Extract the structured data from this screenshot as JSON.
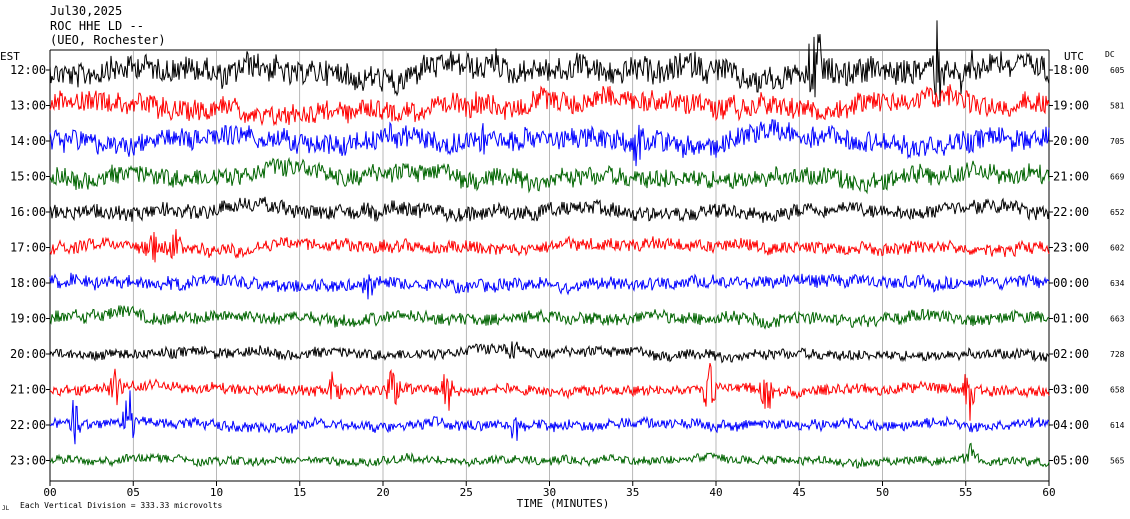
{
  "header": {
    "date": "Jul30,2025",
    "station": "ROC HHE LD --",
    "network": "(UEO, Rochester)"
  },
  "chart_data": {
    "type": "line",
    "left_axis_label": "EST",
    "right_axis_label": "UTC",
    "dc_label": "DC",
    "xlabel": "TIME (MINUTES)",
    "x_ticks": [
      "00",
      "05",
      "10",
      "15",
      "20",
      "25",
      "30",
      "35",
      "40",
      "45",
      "50",
      "55",
      "60"
    ],
    "xlim": [
      0,
      60
    ],
    "footnote": "Each Vertical Division =  333.33 microvolts",
    "footnote_mark": "JL",
    "rows": [
      {
        "est": "12:00",
        "utc": "18:00",
        "dc": "605",
        "color": "#000000",
        "amp": 12
      },
      {
        "est": "13:00",
        "utc": "19:00",
        "dc": "581",
        "color": "#ff0000",
        "amp": 10
      },
      {
        "est": "14:00",
        "utc": "20:00",
        "dc": "705",
        "color": "#0000ff",
        "amp": 10
      },
      {
        "est": "15:00",
        "utc": "21:00",
        "dc": "669",
        "color": "#006400",
        "amp": 9
      },
      {
        "est": "16:00",
        "utc": "22:00",
        "dc": "652",
        "color": "#000000",
        "amp": 7
      },
      {
        "est": "17:00",
        "utc": "23:00",
        "dc": "602",
        "color": "#ff0000",
        "amp": 6
      },
      {
        "est": "18:00",
        "utc": "00:00",
        "dc": "634",
        "color": "#0000ff",
        "amp": 6
      },
      {
        "est": "19:00",
        "utc": "01:00",
        "dc": "663",
        "color": "#006400",
        "amp": 6
      },
      {
        "est": "20:00",
        "utc": "02:00",
        "dc": "728",
        "color": "#000000",
        "amp": 5
      },
      {
        "est": "21:00",
        "utc": "03:00",
        "dc": "658",
        "color": "#ff0000",
        "amp": 5
      },
      {
        "est": "22:00",
        "utc": "04:00",
        "dc": "614",
        "color": "#0000ff",
        "amp": 5
      },
      {
        "est": "23:00",
        "utc": "05:00",
        "dc": "565",
        "color": "#006400",
        "amp": 4
      }
    ],
    "events": [
      {
        "row": 0,
        "t": 46.0,
        "amp": 60
      },
      {
        "row": 0,
        "t": 53.3,
        "amp": 45
      },
      {
        "row": 0,
        "t": 55.0,
        "amp": 40
      },
      {
        "row": 1,
        "t": 25.3,
        "amp": 18
      },
      {
        "row": 2,
        "t": 26.0,
        "amp": 20
      },
      {
        "row": 2,
        "t": 35.4,
        "amp": 16
      },
      {
        "row": 5,
        "t": 6.2,
        "amp": 20
      },
      {
        "row": 5,
        "t": 7.5,
        "amp": 18
      },
      {
        "row": 6,
        "t": 19.0,
        "amp": 14
      },
      {
        "row": 8,
        "t": 27.8,
        "amp": 12
      },
      {
        "row": 9,
        "t": 3.8,
        "amp": 25
      },
      {
        "row": 9,
        "t": 17.0,
        "amp": 20
      },
      {
        "row": 9,
        "t": 20.6,
        "amp": 30
      },
      {
        "row": 9,
        "t": 23.9,
        "amp": 22
      },
      {
        "row": 9,
        "t": 39.6,
        "amp": 30
      },
      {
        "row": 9,
        "t": 43.0,
        "amp": 25
      },
      {
        "row": 9,
        "t": 55.2,
        "amp": 40
      },
      {
        "row": 10,
        "t": 1.4,
        "amp": 30
      },
      {
        "row": 10,
        "t": 4.8,
        "amp": 35
      },
      {
        "row": 10,
        "t": 28.0,
        "amp": 18
      },
      {
        "row": 11,
        "t": 55.3,
        "amp": 20
      }
    ]
  }
}
